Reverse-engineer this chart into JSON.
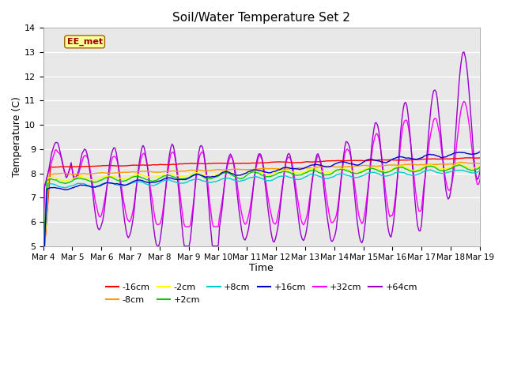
{
  "title": "Soil/Water Temperature Set 2",
  "xlabel": "Time",
  "ylabel": "Temperature (C)",
  "ylim": [
    5.0,
    14.0
  ],
  "yticks": [
    5.0,
    6.0,
    7.0,
    8.0,
    9.0,
    10.0,
    11.0,
    12.0,
    13.0,
    14.0
  ],
  "bg_color": "#e8e8e8",
  "series": {
    "-16cm": {
      "color": "#ff0000"
    },
    "-8cm": {
      "color": "#ff9900"
    },
    "-2cm": {
      "color": "#ffff00"
    },
    "+2cm": {
      "color": "#00cc00"
    },
    "+8cm": {
      "color": "#00cccc"
    },
    "+16cm": {
      "color": "#0000cc"
    },
    "+32cm": {
      "color": "#ff00ff"
    },
    "+64cm": {
      "color": "#9900cc"
    }
  },
  "watermark_text": "EE_met",
  "watermark_bg": "#ffff99",
  "watermark_border": "#996600",
  "legend_order": [
    "-16cm",
    "-8cm",
    "-2cm",
    "+2cm",
    "+8cm",
    "+16cm",
    "+32cm",
    "+64cm"
  ]
}
